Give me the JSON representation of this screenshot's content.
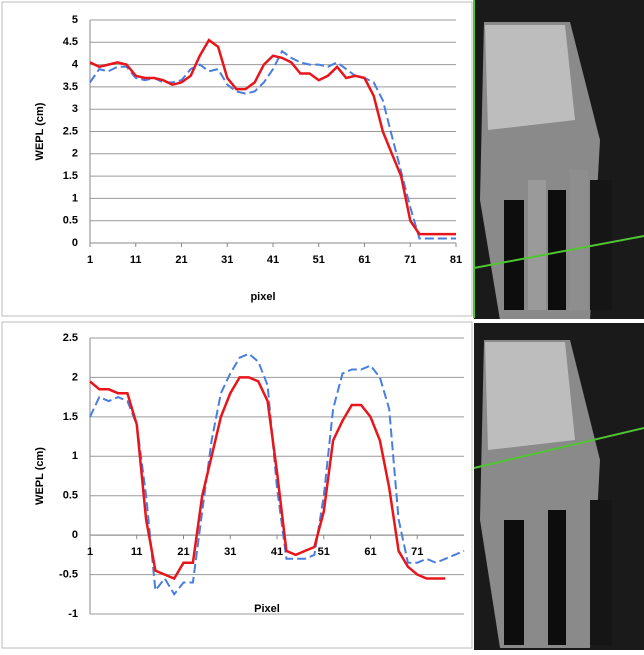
{
  "chart_data": [
    {
      "type": "line",
      "xlabel": "pixel",
      "ylabel": "WEPL (cm)",
      "grid": true,
      "x": [
        1,
        3,
        5,
        7,
        9,
        11,
        13,
        15,
        17,
        19,
        21,
        23,
        25,
        27,
        29,
        31,
        33,
        35,
        37,
        39,
        41,
        43,
        45,
        47,
        49,
        51,
        53,
        55,
        57,
        59,
        61,
        63,
        65,
        67,
        69,
        71,
        73,
        75,
        77,
        79,
        81
      ],
      "xlim": [
        1,
        81
      ],
      "xticks": [
        1,
        11,
        21,
        31,
        41,
        51,
        61,
        71,
        81
      ],
      "ylim": [
        0,
        5
      ],
      "yticks": [
        0,
        0.5,
        1,
        1.5,
        2,
        2.5,
        3,
        3.5,
        4,
        4.5,
        5
      ],
      "series": [
        {
          "color": "#4a7de0",
          "dash": true,
          "values": [
            3.6,
            3.9,
            3.85,
            3.95,
            3.95,
            3.7,
            3.65,
            3.7,
            3.6,
            3.6,
            3.65,
            3.9,
            4.0,
            3.85,
            3.9,
            3.55,
            3.4,
            3.35,
            3.4,
            3.6,
            3.9,
            4.3,
            4.15,
            4.05,
            4.0,
            4.0,
            3.95,
            4.05,
            3.9,
            3.75,
            3.7,
            3.6,
            3.2,
            2.4,
            1.6,
            0.8,
            0.1,
            0.1,
            0.1,
            0.1,
            0.1
          ]
        },
        {
          "color": "#e8161b",
          "dash": false,
          "values": [
            4.05,
            3.95,
            4.0,
            4.05,
            4.0,
            3.75,
            3.7,
            3.7,
            3.65,
            3.55,
            3.6,
            3.75,
            4.2,
            4.55,
            4.4,
            3.7,
            3.45,
            3.45,
            3.6,
            4.0,
            4.2,
            4.15,
            4.05,
            3.8,
            3.8,
            3.65,
            3.75,
            3.95,
            3.7,
            3.75,
            3.7,
            3.3,
            2.5,
            2.0,
            1.5,
            0.5,
            0.2,
            0.2,
            0.2,
            0.2,
            0.2
          ]
        }
      ]
    },
    {
      "type": "line",
      "xlabel": "Pixel",
      "ylabel": "WEPL (cm)",
      "grid": true,
      "x": [
        1,
        3,
        5,
        7,
        9,
        11,
        13,
        15,
        17,
        19,
        21,
        23,
        25,
        27,
        29,
        31,
        33,
        35,
        37,
        39,
        41,
        43,
        45,
        47,
        49,
        51,
        53,
        55,
        57,
        59,
        61,
        63,
        65,
        67,
        69,
        71,
        73,
        75,
        77,
        79,
        81
      ],
      "xlim": [
        1,
        81
      ],
      "xticks": [
        1,
        11,
        21,
        31,
        41,
        51,
        61,
        71
      ],
      "ylim": [
        -1,
        2.5
      ],
      "yticks": [
        -1,
        -0.5,
        0,
        0.5,
        1,
        1.5,
        2,
        2.5
      ],
      "series": [
        {
          "color": "#4a7de0",
          "dash": true,
          "values": [
            1.5,
            1.75,
            1.7,
            1.75,
            1.7,
            1.4,
            0.5,
            -0.7,
            -0.55,
            -0.75,
            -0.6,
            -0.6,
            0.3,
            1.2,
            1.8,
            2.05,
            2.25,
            2.3,
            2.2,
            1.9,
            0.6,
            -0.3,
            -0.3,
            -0.3,
            -0.25,
            0.5,
            1.6,
            2.05,
            2.1,
            2.1,
            2.15,
            2.0,
            1.6,
            0.2,
            -0.35,
            -0.35,
            -0.3,
            -0.35,
            -0.3,
            -0.25,
            -0.2
          ]
        },
        {
          "color": "#e8161b",
          "dash": false,
          "values": [
            1.95,
            1.85,
            1.85,
            1.8,
            1.8,
            1.4,
            0.2,
            -0.45,
            -0.5,
            -0.55,
            -0.35,
            -0.35,
            0.5,
            1.0,
            1.5,
            1.8,
            2.0,
            2.0,
            1.95,
            1.7,
            0.8,
            -0.2,
            -0.25,
            -0.2,
            -0.15,
            0.3,
            1.2,
            1.45,
            1.65,
            1.65,
            1.5,
            1.2,
            0.6,
            -0.2,
            -0.4,
            -0.5,
            -0.55,
            -0.55,
            -0.55,
            null,
            null
          ]
        }
      ]
    }
  ]
}
